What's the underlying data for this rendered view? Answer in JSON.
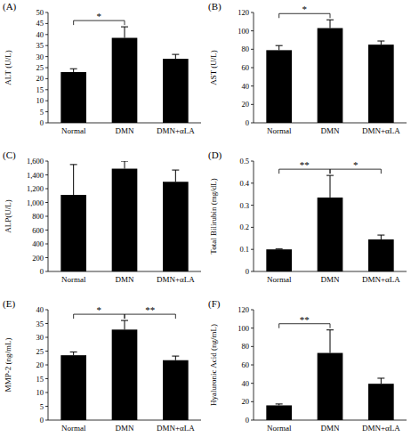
{
  "chart_data": [
    {
      "type": "bar",
      "title": "(A)",
      "y_label": "ALT (U/L)",
      "categories": [
        "Normal",
        "DMN",
        "DMN+αLA"
      ],
      "values": [
        23,
        38.5,
        29
      ],
      "errors": [
        1.5,
        5,
        2
      ],
      "color": "#000000",
      "ylim": [
        0,
        50
      ],
      "yticks": [
        0,
        5,
        10,
        15,
        20,
        25,
        30,
        35,
        40,
        45,
        50
      ],
      "annotations": [
        {
          "between": [
            "Normal",
            "DMN"
          ],
          "text": "*"
        }
      ]
    },
    {
      "type": "bar",
      "title": "(B)",
      "y_label": "AST (U/L)",
      "categories": [
        "Normal",
        "DMN",
        "DMN+αLA"
      ],
      "values": [
        79,
        103,
        85
      ],
      "errors": [
        5,
        9,
        4
      ],
      "color": "#000000",
      "ylim": [
        0,
        120
      ],
      "yticks": [
        0,
        20,
        40,
        60,
        80,
        100,
        120
      ],
      "annotations": [
        {
          "between": [
            "Normal",
            "DMN"
          ],
          "text": "*"
        }
      ]
    },
    {
      "type": "bar",
      "title": "(C)",
      "y_label": "ALP(U/L)",
      "categories": [
        "Normal",
        "DMN",
        "DMN+αLA"
      ],
      "values": [
        1110,
        1490,
        1300
      ],
      "errors": [
        440,
        110,
        170
      ],
      "color": "#000000",
      "ylim": [
        0,
        1600
      ],
      "yticks": [
        0,
        200,
        400,
        600,
        800,
        {
          "value": 1000,
          "label": "1,000"
        },
        {
          "value": 1200,
          "label": "1,200"
        },
        {
          "value": 1400,
          "label": "1,400"
        },
        {
          "value": 1600,
          "label": "1,600"
        }
      ],
      "annotations": []
    },
    {
      "type": "bar",
      "title": "(D)",
      "y_label": "Total Bilirubin (mg/dL)",
      "categories": [
        "Normal",
        "DMN",
        "DMN+αLA"
      ],
      "values": [
        0.1,
        0.335,
        0.145
      ],
      "errors": [
        0.002,
        0.1,
        0.02
      ],
      "color": "#000000",
      "ylim": [
        0,
        0.5
      ],
      "yticks": [
        0,
        0.1,
        0.2,
        0.3,
        0.4,
        0.5
      ],
      "annotations": [
        {
          "between": [
            "Normal",
            "DMN"
          ],
          "text": "**"
        },
        {
          "between": [
            "DMN",
            "DMN+αLA"
          ],
          "text": "*"
        }
      ]
    },
    {
      "type": "bar",
      "title": "(E)",
      "y_label": "MMP-2 (ng/mL)",
      "categories": [
        "Normal",
        "DMN",
        "DMN+αLA"
      ],
      "values": [
        23.5,
        32.8,
        21.7
      ],
      "errors": [
        1.2,
        3.3,
        1.5
      ],
      "color": "#000000",
      "ylim": [
        0,
        40
      ],
      "yticks": [
        0,
        5,
        10,
        15,
        20,
        25,
        30,
        35,
        40
      ],
      "annotations": [
        {
          "between": [
            "Normal",
            "DMN"
          ],
          "text": "*"
        },
        {
          "between": [
            "DMN",
            "DMN+αLA"
          ],
          "text": "**"
        }
      ]
    },
    {
      "type": "bar",
      "title": "(F)",
      "y_label": "Hyaluronic Acid (ng/mL)",
      "categories": [
        "Normal",
        "DMN",
        "DMN+αLA"
      ],
      "values": [
        16,
        73,
        39.5
      ],
      "errors": [
        1.5,
        25,
        6
      ],
      "color": "#000000",
      "ylim": [
        0,
        120
      ],
      "yticks": [
        0,
        20,
        40,
        60,
        80,
        100,
        120
      ],
      "annotations": [
        {
          "between": [
            "Normal",
            "DMN"
          ],
          "text": "**"
        }
      ]
    }
  ]
}
